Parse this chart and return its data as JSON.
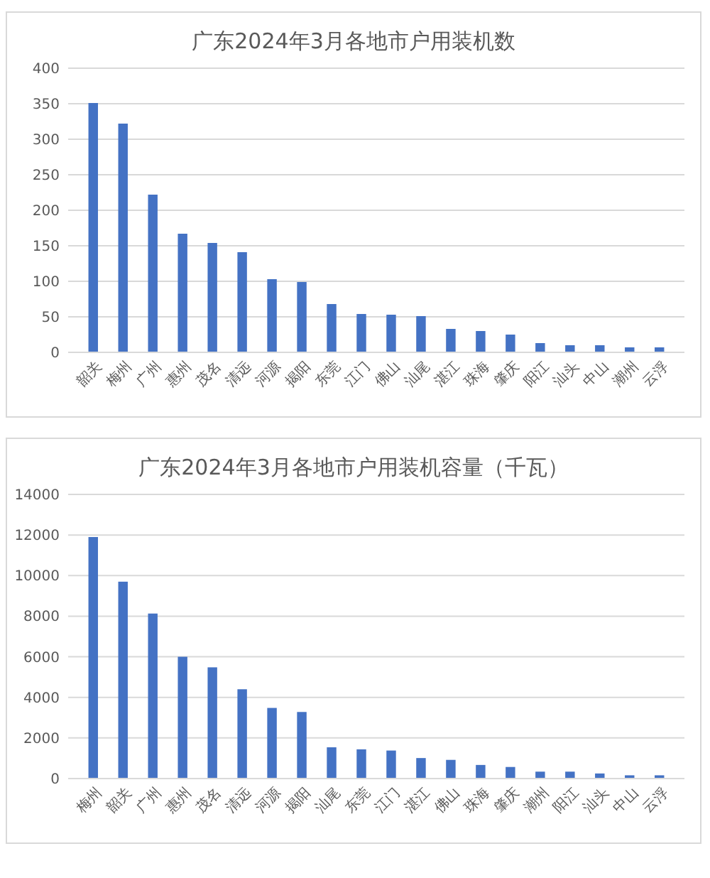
{
  "chart_data": [
    {
      "type": "bar",
      "title": "广东2024年3月各地市户用装机数",
      "categories": [
        "韶关",
        "梅州",
        "广州",
        "惠州",
        "茂名",
        "清远",
        "河源",
        "揭阳",
        "东莞",
        "江门",
        "佛山",
        "汕尾",
        "湛江",
        "珠海",
        "肇庆",
        "阳江",
        "汕头",
        "中山",
        "潮州",
        "云浮"
      ],
      "values": [
        351,
        322,
        222,
        167,
        154,
        141,
        103,
        99,
        68,
        54,
        53,
        51,
        33,
        30,
        25,
        13,
        10,
        10,
        7,
        7
      ],
      "color": "#4472c4",
      "ylim": [
        0,
        400
      ],
      "yticks": [
        0,
        50,
        100,
        150,
        200,
        250,
        300,
        350,
        400
      ],
      "grid": "y"
    },
    {
      "type": "bar",
      "title": "广东2024年3月各地市户用装机容量（千瓦）",
      "categories": [
        "梅州",
        "韶关",
        "广州",
        "惠州",
        "茂名",
        "清远",
        "河源",
        "揭阳",
        "汕尾",
        "东莞",
        "江门",
        "湛江",
        "佛山",
        "珠海",
        "肇庆",
        "潮州",
        "阳江",
        "汕头",
        "中山",
        "云浮"
      ],
      "values": [
        11900,
        9700,
        8130,
        6000,
        5480,
        4400,
        3480,
        3280,
        1540,
        1440,
        1380,
        1010,
        920,
        670,
        570,
        340,
        340,
        250,
        160,
        160
      ],
      "color": "#4472c4",
      "ylim": [
        0,
        14000
      ],
      "yticks": [
        0,
        2000,
        4000,
        6000,
        8000,
        10000,
        12000,
        14000
      ],
      "grid": "y"
    }
  ]
}
